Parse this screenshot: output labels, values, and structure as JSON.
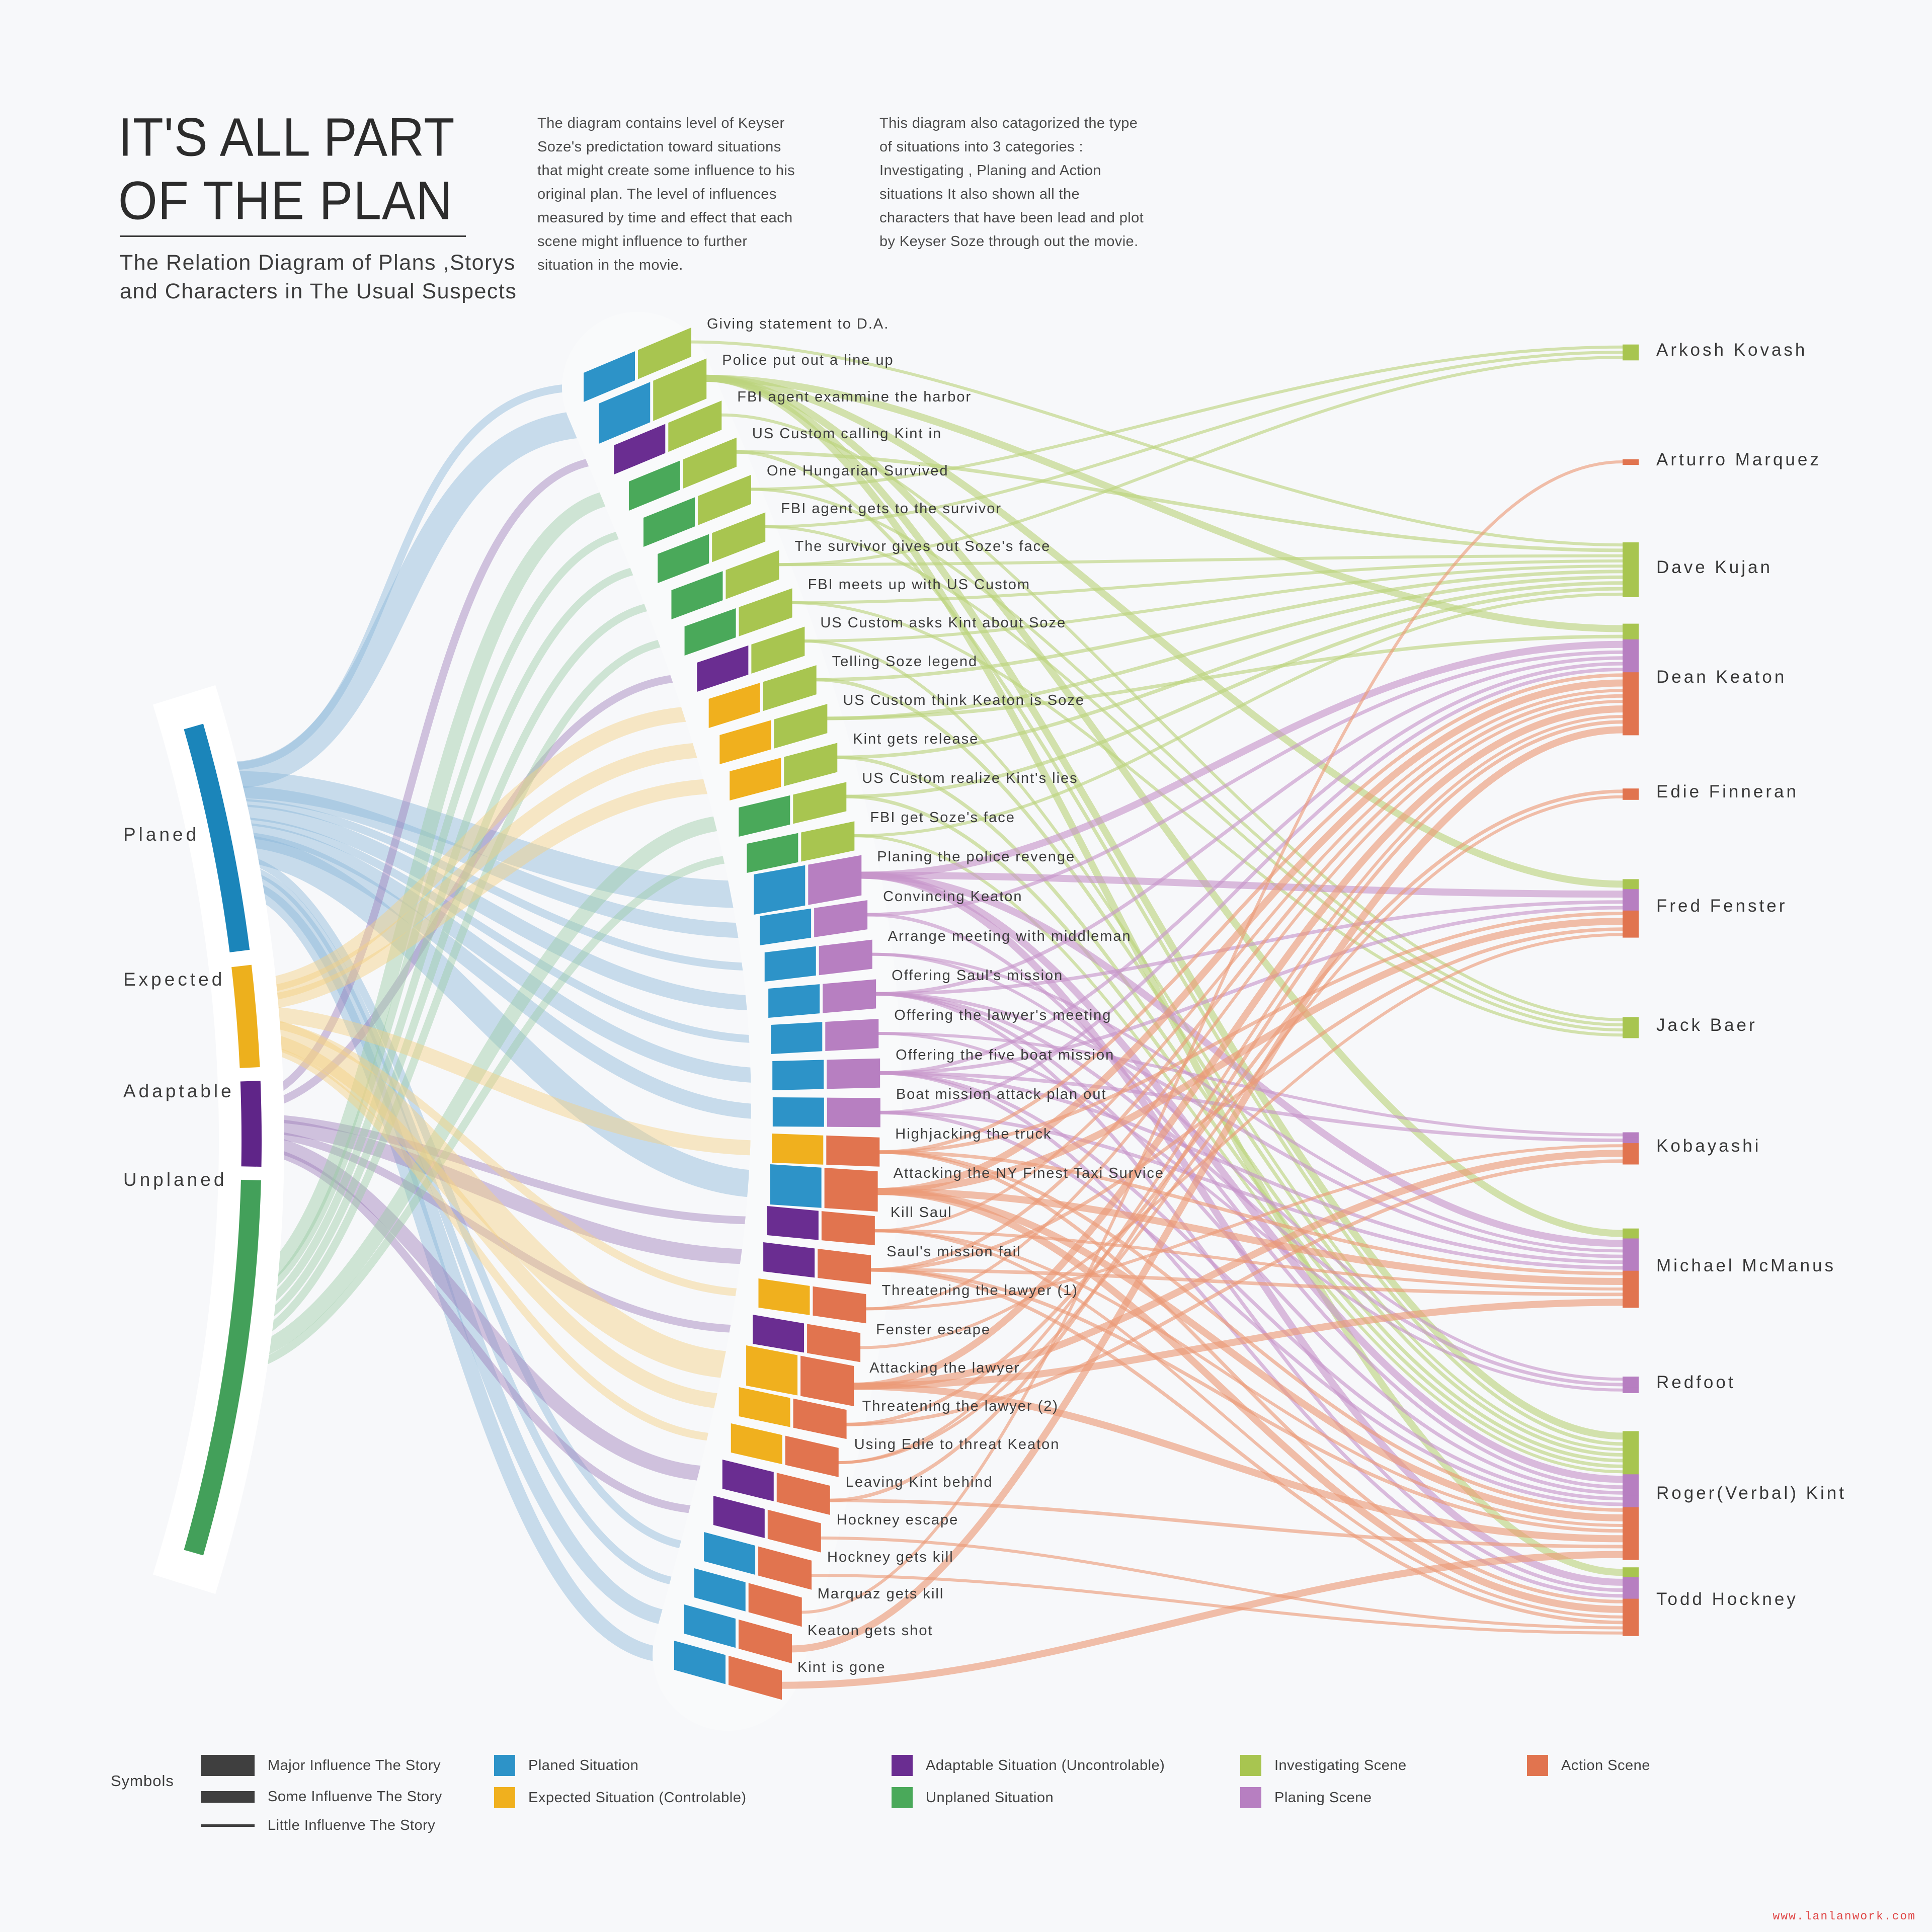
{
  "header": {
    "title_line1": "IT'S ALL PART",
    "title_line2": "OF THE PLAN",
    "subtitle_line1": "The Relation Diagram of Plans ,Storys",
    "subtitle_line2": "and Characters in The Usual Suspects",
    "para1": "The diagram contains level of Keyser Soze's predictation toward situations that might create some influence to his original plan. The level of influences measured by time and effect that each scene might influence to further situation in the movie.",
    "para2": "This diagram also catagorized the type of situations into 3 categories : Investigating , Planing and Action situations It also shown all the characters that have been lead and plot by Keyser Soze through out the movie."
  },
  "palette": {
    "planed": "#2d93c8",
    "expected": "#f0b01e",
    "adaptable": "#6a2d91",
    "unplaned": "#4aa95a",
    "investigating": "#a8c550",
    "planing": "#b77fc1",
    "action": "#e1744f",
    "flow_planed": "#8cb8da",
    "flow_expected": "#f5d083",
    "flow_adaptable": "#9d7fba",
    "flow_unplaned": "#9ccba6",
    "flow_investigating": "#bcd37c",
    "flow_planing": "#c795ca",
    "flow_action": "#ec9a76",
    "arc_planed": "#1b85ba",
    "arc_expected": "#edb01d",
    "arc_adaptable": "#5f2588",
    "arc_unplaned": "#43a05a"
  },
  "plans": [
    {
      "id": "planed",
      "label": "Planed"
    },
    {
      "id": "expected",
      "label": "Expected"
    },
    {
      "id": "adaptable",
      "label": "Adaptable"
    },
    {
      "id": "unplaned",
      "label": "Unplaned"
    }
  ],
  "scenes": [
    {
      "label": "Giving statement to D.A.",
      "plan": "planed",
      "category": "investigating",
      "influence": "little",
      "targets": [
        "dave"
      ]
    },
    {
      "label": "Police put out a line up",
      "plan": "planed",
      "category": "investigating",
      "influence": "major",
      "targets": [
        "dean",
        "michael",
        "fred",
        "todd",
        "roger"
      ]
    },
    {
      "label": "FBI agent exammine the harbor",
      "plan": "adaptable",
      "category": "investigating",
      "influence": "little",
      "targets": [
        "jack"
      ]
    },
    {
      "label": "US Custom calling Kint in",
      "plan": "unplaned",
      "category": "investigating",
      "influence": "some",
      "targets": [
        "dave",
        "roger"
      ]
    },
    {
      "label": "One Hungarian Survived",
      "plan": "unplaned",
      "category": "investigating",
      "influence": "little",
      "targets": [
        "arkosh",
        "jack"
      ]
    },
    {
      "label": "FBI agent gets to the survivor",
      "plan": "unplaned",
      "category": "investigating",
      "influence": "little",
      "targets": [
        "arkosh",
        "jack"
      ]
    },
    {
      "label": "The survivor gives out Soze's face",
      "plan": "unplaned",
      "category": "investigating",
      "influence": "little",
      "targets": [
        "arkosh",
        "dave"
      ]
    },
    {
      "label": "FBI meets up with US Custom",
      "plan": "unplaned",
      "category": "investigating",
      "influence": "little",
      "targets": [
        "dave",
        "jack"
      ]
    },
    {
      "label": "US Custom asks Kint about Soze",
      "plan": "adaptable",
      "category": "investigating",
      "influence": "little",
      "targets": [
        "dave",
        "roger"
      ]
    },
    {
      "label": "Telling Soze legend",
      "plan": "expected",
      "category": "investigating",
      "influence": "some",
      "targets": [
        "dave",
        "roger"
      ]
    },
    {
      "label": "US Custom think Keaton is Soze",
      "plan": "expected",
      "category": "investigating",
      "influence": "some",
      "targets": [
        "dave",
        "dean"
      ]
    },
    {
      "label": "Kint gets release",
      "plan": "expected",
      "category": "investigating",
      "influence": "some",
      "targets": [
        "dave",
        "roger"
      ]
    },
    {
      "label": "US Custom realize Kint's lies",
      "plan": "unplaned",
      "category": "investigating",
      "influence": "some",
      "targets": [
        "dave",
        "roger"
      ]
    },
    {
      "label": "FBI get Soze's face",
      "plan": "unplaned",
      "category": "investigating",
      "influence": "little",
      "targets": [
        "dave",
        "roger"
      ]
    },
    {
      "label": "Planing the police revenge",
      "plan": "planed",
      "category": "planing",
      "influence": "major",
      "targets": [
        "dean",
        "michael",
        "fred",
        "todd",
        "roger"
      ]
    },
    {
      "label": "Convincing Keaton",
      "plan": "planed",
      "category": "planing",
      "influence": "some",
      "targets": [
        "dean",
        "roger"
      ]
    },
    {
      "label": "Arrange meeting with middleman",
      "plan": "planed",
      "category": "planing",
      "influence": "little",
      "targets": [
        "redfoot",
        "michael"
      ]
    },
    {
      "label": "Offering Saul's mission",
      "plan": "planed",
      "category": "planing",
      "influence": "some",
      "targets": [
        "redfoot",
        "dean",
        "michael",
        "fred",
        "todd",
        "roger"
      ]
    },
    {
      "label": "Offering the lawyer's meeting",
      "plan": "planed",
      "category": "planing",
      "influence": "little",
      "targets": [
        "redfoot",
        "kobayashi"
      ]
    },
    {
      "label": "Offering the five boat mission",
      "plan": "planed",
      "category": "planing",
      "influence": "some",
      "targets": [
        "kobayashi",
        "dean",
        "michael",
        "fred",
        "todd",
        "roger"
      ]
    },
    {
      "label": "Boat mission attack plan out",
      "plan": "planed",
      "category": "planing",
      "influence": "some",
      "targets": [
        "dean",
        "michael",
        "roger"
      ]
    },
    {
      "label": "Highjacking the truck",
      "plan": "expected",
      "category": "action",
      "influence": "some",
      "targets": [
        "dean",
        "michael",
        "fred",
        "todd",
        "roger"
      ]
    },
    {
      "label": "Attacking the NY Finest Taxi Survice",
      "plan": "planed",
      "category": "action",
      "influence": "major",
      "targets": [
        "dean",
        "michael",
        "fred",
        "todd",
        "roger"
      ]
    },
    {
      "label": "Kill Saul",
      "plan": "adaptable",
      "category": "action",
      "influence": "little",
      "targets": [
        "dean",
        "michael",
        "todd",
        "roger"
      ]
    },
    {
      "label": "Saul's mission fail",
      "plan": "adaptable",
      "category": "action",
      "influence": "some",
      "targets": [
        "dean",
        "michael",
        "fred",
        "todd",
        "roger"
      ]
    },
    {
      "label": "Threatening the lawyer (1)",
      "plan": "expected",
      "category": "action",
      "influence": "little",
      "targets": [
        "kobayashi",
        "dean"
      ]
    },
    {
      "label": "Fenster escape",
      "plan": "adaptable",
      "category": "action",
      "influence": "little",
      "targets": [
        "fred"
      ]
    },
    {
      "label": "Attacking the lawyer",
      "plan": "expected",
      "category": "action",
      "influence": "major",
      "targets": [
        "kobayashi",
        "dean",
        "michael",
        "roger"
      ]
    },
    {
      "label": "Threatening the lawyer (2)",
      "plan": "expected",
      "category": "action",
      "influence": "some",
      "targets": [
        "kobayashi",
        "edie"
      ]
    },
    {
      "label": "Using Edie to threat Keaton",
      "plan": "expected",
      "category": "action",
      "influence": "little",
      "targets": [
        "edie",
        "dean"
      ]
    },
    {
      "label": "Leaving Kint behind",
      "plan": "adaptable",
      "category": "action",
      "influence": "some",
      "targets": [
        "dean",
        "roger"
      ]
    },
    {
      "label": "Hockney escape",
      "plan": "adaptable",
      "category": "action",
      "influence": "little",
      "targets": [
        "todd"
      ]
    },
    {
      "label": "Hockney gets kill",
      "plan": "planed",
      "category": "action",
      "influence": "little",
      "targets": [
        "todd"
      ]
    },
    {
      "label": "Marquaz gets kill",
      "plan": "planed",
      "category": "action",
      "influence": "little",
      "targets": [
        "arturro"
      ]
    },
    {
      "label": "Keaton gets shot",
      "plan": "planed",
      "category": "action",
      "influence": "some",
      "targets": [
        "dean"
      ]
    },
    {
      "label": "Kint is gone",
      "plan": "planed",
      "category": "action",
      "influence": "some",
      "targets": [
        "roger"
      ]
    }
  ],
  "characters": [
    {
      "id": "arkosh",
      "label": "Arkosh Kovash"
    },
    {
      "id": "arturro",
      "label": "Arturro Marquez"
    },
    {
      "id": "dave",
      "label": "Dave Kujan"
    },
    {
      "id": "dean",
      "label": "Dean Keaton"
    },
    {
      "id": "edie",
      "label": "Edie Finneran"
    },
    {
      "id": "fred",
      "label": "Fred Fenster"
    },
    {
      "id": "jack",
      "label": "Jack Baer"
    },
    {
      "id": "kobayashi",
      "label": "Kobayashi"
    },
    {
      "id": "michael",
      "label": "Michael McManus"
    },
    {
      "id": "redfoot",
      "label": "Redfoot"
    },
    {
      "id": "roger",
      "label": "Roger(Verbal) Kint"
    },
    {
      "id": "todd",
      "label": "Todd Hockney"
    }
  ],
  "legend": {
    "symbols_label": "Symbols",
    "influence_color": "#3f3f3f",
    "influence": [
      {
        "label": "Major Influence The Story"
      },
      {
        "label": "Some Influenve The Story"
      },
      {
        "label": "Little Influenve  The Story"
      }
    ],
    "types": [
      {
        "label": "Planed Situation",
        "color": "#2d93c8"
      },
      {
        "label": "Expected Situation (Controlable)",
        "color": "#f0b01e"
      },
      {
        "label": "Adaptable Situation (Uncontrolable)",
        "color": "#6a2d91"
      },
      {
        "label": "Unplaned Situation",
        "color": "#4aa95a"
      },
      {
        "label": "Investigating Scene",
        "color": "#a8c550"
      },
      {
        "label": "Planing Scene",
        "color": "#b77fc1"
      },
      {
        "label": "Action Scene",
        "color": "#e1744f"
      }
    ]
  },
  "footer": {
    "credit": "www.lanlanwork.com",
    "credit_color": "#e04747"
  }
}
